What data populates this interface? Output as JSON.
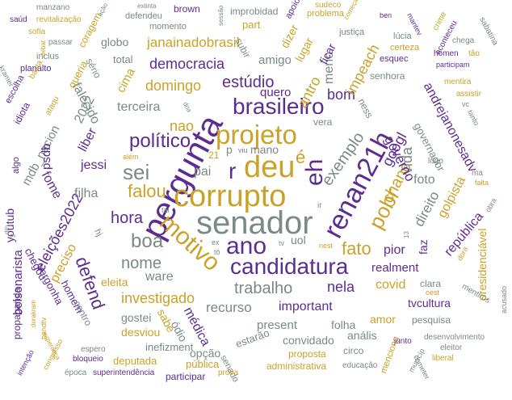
{
  "colors": {
    "gold": "#c9a227",
    "purple": "#5c2d91",
    "gray": "#7a8a84",
    "olive": "#7d7d4a"
  },
  "words": {
    "senador": "senador",
    "pergunta": "pergunta",
    "corrupto": "corrupto",
    "projeto": "projeto",
    "deu": "deu",
    "renan21h": "renan21h",
    "motivo": "motivo",
    "candidatura": "candidatura",
    "ano": "ano",
    "brasileiro": "brasileiro",
    "e_acc": "é",
    "eh": "eh",
    "r": "r",
    "sei": "sei",
    "politico": "político",
    "pobr": "pobr",
    "exemplo": "exemplo",
    "falou": "falou",
    "estudio": "estúdio",
    "democracia": "democracia",
    "domingo": "domingo",
    "janainadobrasil": "janainadobrasil",
    "hora": "hora",
    "boa": "boa",
    "nome": "nome",
    "trabalho": "trabalho",
    "investigado": "investigado",
    "defend": "defend",
    "eleicoes2022": "eleições2022",
    "fato": "fato",
    "nela": "nela",
    "recurso": "recurso",
    "important": "important",
    "covid": "covid",
    "realment": "realment",
    "chanc": "chanc",
    "vida": "vida",
    "googl": "googl",
    "direito": "direito",
    "foto": "foto",
    "golpista": "golpista",
    "republica": "república",
    "presidenciavel": "presidenciável",
    "governo": "governo",
    "andrejanonesadv": "andrejanonesadv",
    "governador": "governador",
    "exist": "exist",
    "ware": "ware",
    "eleita": "eleita",
    "bolsonarista": "bolsonarista",
    "mdb_nacion": "mdb_nacion",
    "psdb": "psdb",
    "fome": "fome",
    "jessi": "jessi",
    "filha": "filha",
    "liber": "liber",
    "falecido": "falecido",
    "terceira": "terceira",
    "nao": "nao",
    "pai": "pai",
    "mano": "mano",
    "p": "p",
    "uol": "uol",
    "pior": "pior",
    "faz": "faz",
    "bom": "bom",
    "antro": "antro",
    "impeach": "impeach",
    "meno": "meno",
    "ficar": "ficar",
    "quero": "quero",
    "amigo": "amigo",
    "cima": "cima",
    "2022": "2022",
    "sabe": "sabe",
    "odio": "ódio",
    "medica": "médica",
    "present": "present",
    "folha": "folha",
    "convidado": "convidado",
    "desviou": "desviou",
    "gostei": "gostei",
    "opcao": "opção",
    "publica": "pública",
    "participar": "participar",
    "inefizment": "inefizment",
    "estarao": "estarão",
    "senado": "senado",
    "proposta": "proposta",
    "administrativa": "administrativa",
    "circo": "circo",
    "analis": "anális",
    "amor": "amor",
    "tvcultura": "tvcultura",
    "clara": "clara",
    "pesquisa": "pesquisa",
    "youtub": "youtub",
    "preciso": "preciso",
    "chegou": "chegou",
    "vergonha": "vergonha",
    "homem": "homem",
    "centro": "centro",
    "propaganda": "propaganda",
    "deputada": "deputada",
    "bloqueio": "bloqueio",
    "espero": "espero",
    "superintendencia": "superintendência",
    "epoca": "época",
    "prova": "prova",
    "educacao": "educação",
    "desenvolvimento": "desenvolvimento",
    "eleitor": "eleitor",
    "liberal": "liberal",
    "mencong": "menciong",
    "globo": "globo",
    "total": "total",
    "serio": "sério",
    "queria": "queria",
    "idiota": "idiota",
    "escolha": "escolha",
    "planalto": "planalto",
    "inclus": "inclus",
    "passar": "passar",
    "sofia": "sofia",
    "saud": "saúd",
    "manzano": "manzano",
    "revitalizacao": "revitalização",
    "coragem": "coragem",
    "defendeu": "defendeu",
    "brown": "brown",
    "momento": "momento",
    "improbidad": "improbidad",
    "subir": "subir",
    "part": "part",
    "dizer": "dizer",
    "lugar": "lugar",
    "problema": "problema",
    "justica": "justiça",
    "lucia": "lúcia",
    "esquec": "esquec",
    "certeza": "certeza",
    "senhora": "senhora",
    "ness": "ness",
    "vera": "vera",
    "logo": "logo",
    "alem": "além",
    "21": "21",
    "viu": "viu",
    "tal": "tal",
    "hj": "hj",
    "ir": "ir",
    "ex": "ex",
    "to": "tô",
    "tv": "tv",
    "nest": "nest",
    "algo": "algo",
    "basta": "basta",
    "ataqu": "ataqu",
    "apoiou": "apoiou",
    "sudeco": "sudeco",
    "ben": "ben",
    "mantev": "mantev",
    "crime": "crime",
    "sabatina": "sabatina",
    "aconteceu": "aconteceu",
    "chega": "chega",
    "homen": "homen",
    "tao": "tão",
    "participam": "participam",
    "mentira": "mentira",
    "assistir": "assistir",
    "vc": "vc",
    "tanto": "tanto",
    "ma": "ma",
    "falta": "falta",
    "obra": "obra",
    "dora": "dora",
    "mentiros": "mentiros",
    "acusado": "acusado",
    "oest": "oest",
    "junto": "junto",
    "municip": "municíp",
    "cometer": "cometer",
    "intencao": "intenção",
    "bandtv": "bandtv",
    "congresso": "congresso",
    "esperanca": "esperança",
    "dorakram": "dorakram",
    "acao": "ação",
    "extinta": "extinta",
    "sessao": "sessão",
    "kramer": "kramer",
    "a13": "13",
    "dm": "dm",
    "doa": "doa",
    "comeca": "começa",
    "debat": "debat",
    "f2o": "2º"
  }
}
